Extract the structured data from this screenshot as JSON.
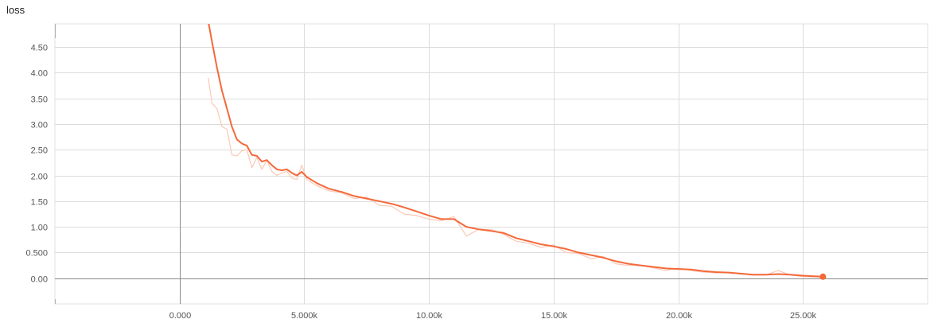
{
  "chart_data": {
    "type": "line",
    "title": "loss",
    "xlabel": "",
    "ylabel": "",
    "xlim": [
      -5000,
      30000
    ],
    "ylim": [
      -0.5,
      4.95
    ],
    "x_ticks": [
      0,
      5000,
      10000,
      15000,
      20000,
      25000
    ],
    "x_tick_labels": [
      "0.000",
      "5.000k",
      "10.00k",
      "15.00k",
      "20.00k",
      "25.00k"
    ],
    "y_ticks": [
      0,
      0.5,
      1.0,
      1.5,
      2.0,
      2.5,
      3.0,
      3.5,
      4.0,
      4.5
    ],
    "y_tick_labels": [
      "0.00",
      "0.500",
      "1.00",
      "1.50",
      "2.00",
      "2.50",
      "3.00",
      "3.50",
      "4.00",
      "4.50"
    ],
    "grid": true,
    "colors": {
      "smoothed": "#f4693a",
      "raw": "#f9c9b6"
    },
    "series": [
      {
        "role": "smoothed",
        "x": [
          1150,
          1300,
          1500,
          1700,
          1900,
          2100,
          2300,
          2500,
          2700,
          2900,
          3100,
          3300,
          3500,
          3700,
          3900,
          4100,
          4300,
          4500,
          4700,
          4900,
          5100,
          5500,
          6000,
          6500,
          7000,
          7500,
          8000,
          8500,
          9000,
          9500,
          10000,
          10500,
          11000,
          11500,
          12000,
          12500,
          13000,
          13500,
          14000,
          14500,
          15000,
          15500,
          16000,
          16500,
          17000,
          17500,
          18000,
          18500,
          19000,
          19500,
          20000,
          20500,
          21000,
          21500,
          22000,
          22500,
          23000,
          23500,
          24000,
          24500,
          25000,
          25800
        ],
        "y": [
          5.0,
          4.6,
          4.1,
          3.65,
          3.3,
          2.95,
          2.7,
          2.62,
          2.58,
          2.4,
          2.38,
          2.27,
          2.3,
          2.2,
          2.12,
          2.1,
          2.12,
          2.05,
          2.0,
          2.07,
          1.97,
          1.85,
          1.74,
          1.68,
          1.6,
          1.55,
          1.5,
          1.45,
          1.38,
          1.3,
          1.22,
          1.15,
          1.15,
          1.0,
          0.95,
          0.92,
          0.88,
          0.78,
          0.72,
          0.66,
          0.62,
          0.57,
          0.5,
          0.45,
          0.4,
          0.33,
          0.28,
          0.25,
          0.22,
          0.19,
          0.18,
          0.17,
          0.14,
          0.12,
          0.11,
          0.09,
          0.07,
          0.07,
          0.08,
          0.07,
          0.05,
          0.03
        ]
      },
      {
        "role": "raw",
        "x": [
          1150,
          1300,
          1500,
          1700,
          1900,
          2100,
          2300,
          2500,
          2700,
          2900,
          3100,
          3300,
          3500,
          3700,
          3900,
          4100,
          4300,
          4500,
          4700,
          4900,
          5100,
          5500,
          6000,
          6500,
          7000,
          7500,
          8000,
          8500,
          9000,
          9500,
          10000,
          10500,
          11000,
          11500,
          12000,
          12500,
          13000,
          13500,
          14000,
          14500,
          15000,
          15500,
          16000,
          16500,
          17000,
          17500,
          18000,
          18500,
          19000,
          19500,
          20000,
          20500,
          21000,
          21500,
          22000,
          22500,
          23000,
          23500,
          24000,
          24500,
          25000,
          25800
        ],
        "y": [
          3.9,
          3.4,
          3.3,
          2.95,
          2.9,
          2.4,
          2.38,
          2.48,
          2.5,
          2.15,
          2.35,
          2.12,
          2.3,
          2.08,
          2.0,
          2.05,
          2.08,
          1.95,
          1.92,
          2.2,
          1.92,
          1.8,
          1.7,
          1.66,
          1.55,
          1.58,
          1.42,
          1.4,
          1.25,
          1.22,
          1.15,
          1.12,
          1.2,
          0.82,
          0.95,
          0.95,
          0.85,
          0.72,
          0.68,
          0.6,
          0.65,
          0.5,
          0.48,
          0.38,
          0.42,
          0.28,
          0.25,
          0.25,
          0.2,
          0.15,
          0.2,
          0.15,
          0.12,
          0.1,
          0.12,
          0.08,
          0.06,
          0.06,
          0.15,
          0.06,
          0.03,
          0.02
        ]
      }
    ]
  }
}
